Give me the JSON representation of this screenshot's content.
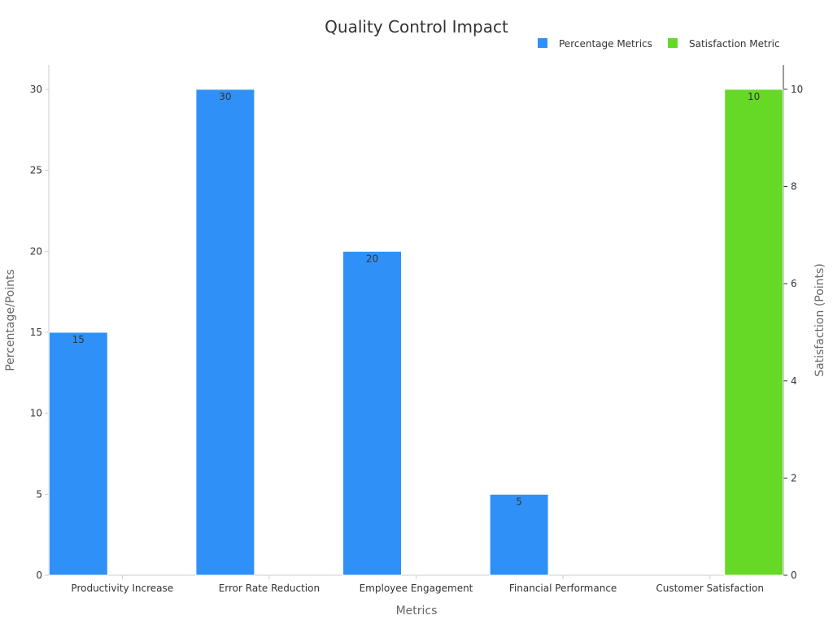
{
  "chart_data": {
    "type": "bar",
    "title": "Quality Control Impact",
    "xlabel": "Metrics",
    "ylabel": "Percentage/Points",
    "y2label": "Satisfaction (Points)",
    "categories": [
      "Productivity Increase",
      "Error Rate Reduction",
      "Employee Engagement",
      "Financial Performance",
      "Customer Satisfaction"
    ],
    "ylim": [
      0,
      31.5
    ],
    "y2lim": [
      0,
      10.5
    ],
    "yticks": [
      0,
      5,
      10,
      15,
      20,
      25,
      30
    ],
    "y2ticks": [
      0,
      2,
      4,
      6,
      8,
      10
    ],
    "grid": false,
    "legend_position": "top-right",
    "series": [
      {
        "name": "Percentage Metrics",
        "axis": "left",
        "color": "#2f91f8",
        "values": [
          15,
          30,
          20,
          5,
          null
        ]
      },
      {
        "name": "Satisfaction Metric",
        "axis": "right",
        "color": "#66d926",
        "values": [
          null,
          null,
          null,
          null,
          10
        ]
      }
    ]
  }
}
